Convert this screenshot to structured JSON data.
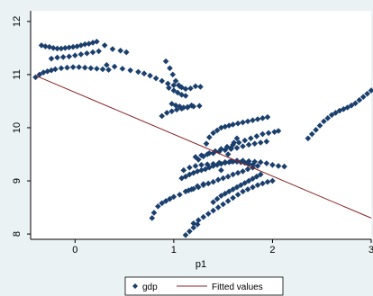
{
  "chart_data": {
    "type": "scatter",
    "xlabel": "p1",
    "ylabel": "",
    "xlim": [
      -0.45,
      3.0
    ],
    "ylim": [
      7.9,
      12.2
    ],
    "xticks": [
      0,
      1,
      2,
      3
    ],
    "yticks": [
      8,
      9,
      10,
      11,
      12
    ],
    "grid": false,
    "legend": {
      "placement": "bottom-center",
      "entries": [
        "gdp",
        "Fitted values"
      ]
    },
    "series": [
      {
        "name": "gdp",
        "marker": "diamond",
        "color": "#1b3f6d",
        "x": [
          -0.4,
          -0.36,
          -0.32,
          -0.28,
          -0.24,
          -0.2,
          -0.14,
          -0.08,
          -0.02,
          0.04,
          0.1,
          0.16,
          0.22,
          0.28,
          0.34,
          -0.34,
          -0.3,
          -0.26,
          -0.22,
          -0.18,
          -0.14,
          -0.1,
          -0.06,
          -0.02,
          0.02,
          0.06,
          0.1,
          0.14,
          0.18,
          0.22,
          0.3,
          0.38,
          0.46,
          0.52,
          -0.24,
          -0.18,
          -0.12,
          -0.06,
          0.0,
          0.06,
          0.12,
          0.18,
          0.24,
          0.32,
          0.4,
          0.48,
          0.56,
          0.64,
          0.7,
          0.76,
          0.82,
          0.88,
          0.94,
          1.0,
          1.06,
          0.92,
          0.96,
          0.99,
          1.02,
          1.05,
          1.08,
          1.12,
          1.17,
          1.22,
          1.27,
          0.95,
          1.0,
          1.04,
          1.08,
          1.12,
          0.98,
          1.02,
          1.06,
          1.1,
          1.14,
          1.18,
          0.88,
          0.93,
          0.98,
          1.03,
          1.08,
          1.14,
          1.2,
          1.26,
          0.78,
          0.8,
          0.84,
          0.88,
          0.92,
          0.96,
          1.0,
          1.06,
          1.12,
          1.18,
          1.24,
          1.3,
          1.08,
          1.12,
          1.16,
          1.2,
          1.24,
          1.28,
          1.32,
          1.36,
          1.4,
          1.44,
          1.48,
          1.52,
          1.56,
          1.6,
          1.64,
          1.68,
          1.72,
          1.76,
          1.8,
          1.1,
          1.16,
          1.22,
          1.28,
          1.34,
          1.4,
          1.46,
          1.52,
          1.58,
          1.64,
          1.7,
          1.76,
          1.82,
          1.88,
          1.94,
          2.0,
          2.06,
          2.12,
          1.22,
          1.28,
          1.34,
          1.4,
          1.46,
          1.52,
          1.58,
          1.64,
          1.7,
          1.76,
          1.82,
          1.88,
          1.94,
          1.15,
          1.2,
          1.25,
          1.3,
          1.35,
          1.4,
          1.45,
          1.5,
          1.55,
          1.6,
          1.65,
          1.7,
          1.75,
          1.8,
          1.85,
          1.2,
          1.25,
          1.3,
          1.35,
          1.4,
          1.45,
          1.5,
          1.55,
          1.6,
          1.65,
          1.7,
          1.75,
          1.8,
          1.85,
          1.9,
          1.95,
          2.0,
          1.4,
          1.44,
          1.48,
          1.52,
          1.56,
          1.6,
          1.64,
          1.68,
          1.72,
          1.76,
          1.8,
          1.84,
          1.88,
          1.48,
          1.52,
          1.55,
          1.58,
          1.61,
          1.64,
          1.33,
          1.36,
          1.4,
          1.44,
          1.48,
          1.52,
          1.56,
          1.6,
          1.65,
          1.7,
          1.75,
          1.8,
          1.85,
          1.9,
          1.95,
          1.25,
          1.3,
          1.36,
          1.42,
          1.48,
          1.54,
          1.6,
          1.66,
          1.72,
          1.78,
          1.84,
          1.9,
          1.96,
          2.02,
          2.06,
          1.12,
          1.16,
          1.2,
          1.24,
          2.36,
          2.4,
          2.44,
          2.48,
          2.52,
          2.56,
          2.6,
          2.64,
          2.68,
          2.72,
          2.76,
          2.8,
          2.84,
          2.88,
          2.92,
          2.96,
          3.0
        ],
        "y": [
          10.95,
          11.0,
          11.04,
          11.06,
          11.08,
          11.1,
          11.12,
          11.13,
          11.14,
          11.14,
          11.13,
          11.12,
          11.11,
          11.1,
          11.09,
          11.55,
          11.53,
          11.52,
          11.5,
          11.49,
          11.49,
          11.5,
          11.51,
          11.52,
          11.53,
          11.55,
          11.57,
          11.58,
          11.6,
          11.62,
          11.55,
          11.48,
          11.45,
          11.42,
          11.3,
          11.32,
          11.33,
          11.34,
          11.36,
          11.38,
          11.4,
          11.42,
          11.44,
          11.18,
          11.15,
          11.11,
          11.08,
          11.05,
          11.02,
          10.98,
          10.93,
          10.88,
          10.83,
          10.8,
          10.78,
          11.25,
          11.12,
          11.0,
          10.88,
          10.8,
          10.76,
          10.73,
          10.74,
          10.78,
          10.77,
          10.75,
          10.7,
          10.66,
          10.62,
          10.6,
          10.45,
          10.42,
          10.4,
          10.38,
          10.39,
          10.42,
          10.22,
          10.28,
          10.31,
          10.34,
          10.36,
          10.38,
          10.4,
          10.41,
          8.3,
          8.4,
          8.52,
          8.58,
          8.62,
          8.66,
          8.7,
          8.74,
          8.8,
          8.84,
          8.9,
          8.94,
          9.05,
          9.08,
          9.12,
          9.15,
          9.18,
          9.2,
          9.22,
          9.25,
          9.28,
          9.3,
          9.32,
          9.34,
          9.35,
          9.36,
          9.36,
          9.35,
          9.34,
          9.32,
          9.3,
          9.2,
          9.25,
          9.28,
          9.3,
          9.31,
          9.32,
          9.34,
          9.35,
          9.37,
          9.38,
          9.38,
          9.37,
          9.36,
          9.35,
          9.33,
          9.3,
          9.28,
          9.27,
          9.45,
          9.48,
          9.5,
          9.52,
          9.55,
          9.58,
          9.6,
          9.62,
          9.65,
          9.68,
          9.7,
          9.72,
          9.74,
          8.82,
          8.85,
          8.88,
          8.92,
          8.95,
          8.98,
          9.02,
          9.05,
          9.08,
          9.12,
          9.15,
          9.18,
          9.22,
          9.25,
          9.28,
          8.2,
          8.26,
          8.32,
          8.38,
          8.44,
          8.5,
          8.56,
          8.62,
          8.68,
          8.74,
          8.8,
          8.84,
          8.88,
          8.92,
          8.95,
          8.98,
          9.0,
          8.6,
          8.66,
          8.72,
          8.76,
          8.8,
          8.84,
          8.88,
          8.92,
          8.96,
          9.0,
          9.04,
          9.08,
          9.12,
          9.2,
          9.35,
          9.5,
          9.62,
          9.72,
          9.8,
          9.7,
          9.82,
          9.9,
          9.95,
          10.0,
          10.02,
          10.04,
          10.06,
          10.08,
          10.1,
          10.12,
          10.14,
          10.16,
          10.18,
          10.2,
          9.4,
          9.46,
          9.52,
          9.56,
          9.6,
          9.64,
          9.68,
          9.72,
          9.76,
          9.8,
          9.84,
          9.88,
          9.9,
          9.92,
          9.94,
          7.98,
          8.05,
          8.12,
          8.18,
          9.8,
          9.88,
          9.96,
          10.04,
          10.12,
          10.18,
          10.24,
          10.28,
          10.32,
          10.35,
          10.38,
          10.42,
          10.46,
          10.52,
          10.58,
          10.64,
          10.7
        ]
      },
      {
        "name": "Fitted values",
        "type": "line",
        "color": "#8b2323",
        "x": [
          -0.4,
          3.0
        ],
        "y": [
          10.98,
          8.3
        ]
      }
    ]
  }
}
